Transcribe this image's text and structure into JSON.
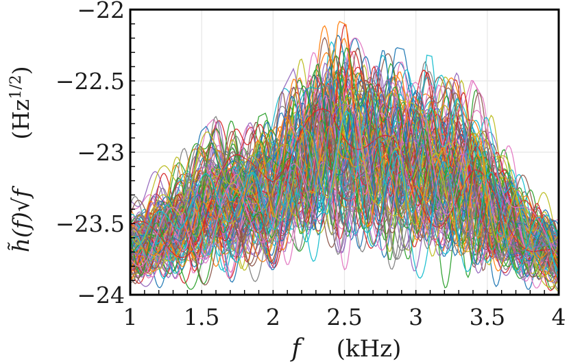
{
  "chart_data": {
    "type": "line",
    "x_label_symbol": "f",
    "x_label_unit": "(kHz)",
    "y_label_expr": "h̃(f)√f",
    "y_label_unit": "(Hz^1/2)",
    "y_label_unit_base": "(Hz",
    "y_label_unit_exp": "1/2",
    "y_label_unit_close": ")",
    "xlim": [
      1,
      4
    ],
    "ylim": [
      -24,
      -22
    ],
    "x_ticks": [
      1,
      1.5,
      2,
      2.5,
      3,
      3.5,
      4
    ],
    "x_tick_labels": [
      "1",
      "1.5",
      "2",
      "2.5",
      "3",
      "3.5",
      "4"
    ],
    "y_ticks": [
      -24,
      -23.5,
      -23,
      -22.5,
      -22
    ],
    "y_tick_labels": [
      "−24",
      "−23.5",
      "−23",
      "−22.5",
      "−22"
    ],
    "grid": true,
    "legend": "none",
    "series_count": 140,
    "palette": [
      "#1f77b4",
      "#ff7f0e",
      "#2ca02c",
      "#d62728",
      "#9467bd",
      "#8c564b",
      "#e377c2",
      "#7f7f7f",
      "#bcbd22",
      "#17becf"
    ],
    "envelope": {
      "x": [
        1.0,
        1.3,
        1.6,
        1.8,
        2.0,
        2.2,
        2.4,
        2.6,
        2.8,
        3.0,
        3.2,
        3.4,
        3.6,
        3.8,
        4.0
      ],
      "upper": [
        -23.25,
        -23.05,
        -22.75,
        -22.8,
        -22.7,
        -22.3,
        -22.05,
        -22.15,
        -22.25,
        -22.3,
        -22.35,
        -22.5,
        -22.85,
        -23.15,
        -23.35
      ],
      "lower": [
        -23.9,
        -23.95,
        -24.0,
        -24.0,
        -24.0,
        -24.0,
        -24.0,
        -24.0,
        -24.0,
        -24.0,
        -24.0,
        -24.0,
        -24.0,
        -24.0,
        -24.0
      ]
    }
  }
}
